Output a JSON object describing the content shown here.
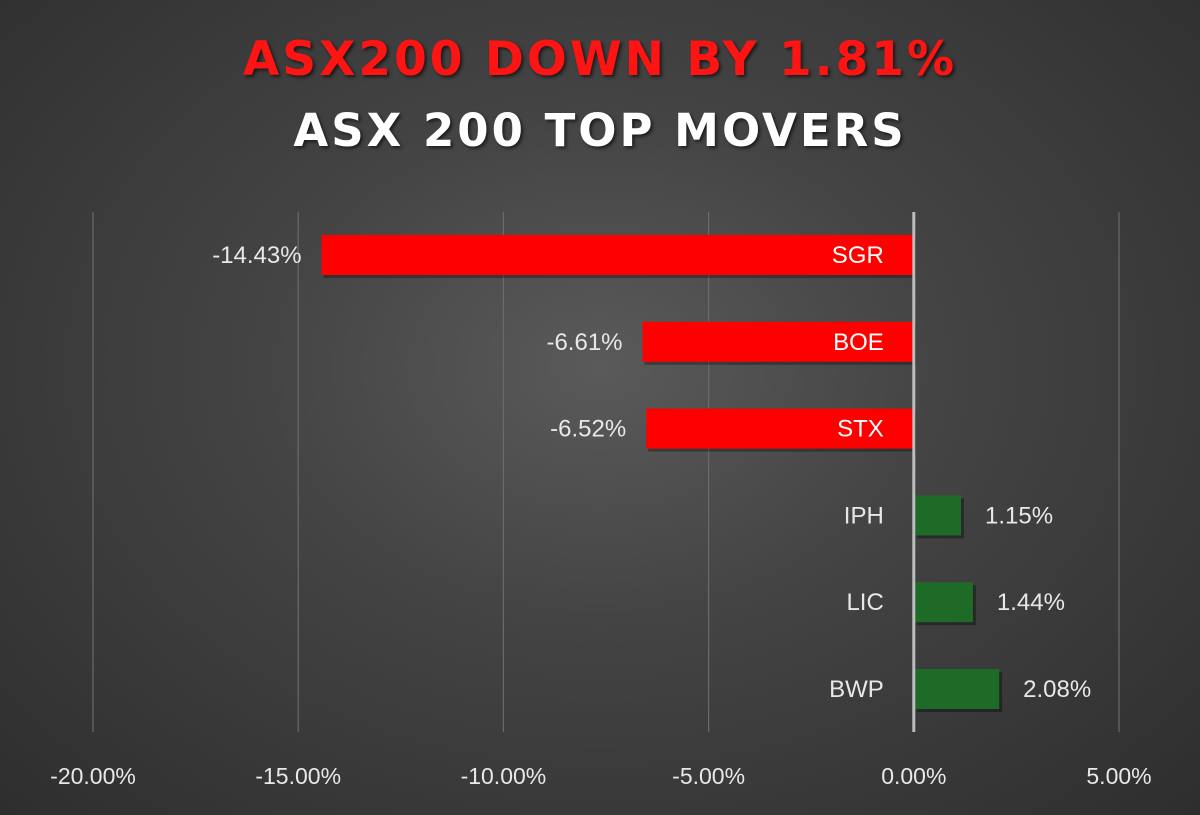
{
  "header": {
    "headline": "ASX200 DOWN BY 1.81%",
    "subheadline": "ASX 200 TOP MOVERS"
  },
  "colors": {
    "negative": "#ff0000",
    "positive": "#1e6b28",
    "gridline": "#6a6a6a",
    "axis": "#bdbdbd",
    "text": "#e8e8e8",
    "headline": "#ff1414"
  },
  "chart_data": {
    "type": "bar",
    "orientation": "horizontal",
    "title": "",
    "xlabel": "",
    "ylabel": "",
    "xlim": [
      -20,
      5
    ],
    "grid": true,
    "legend": "none",
    "categories": [
      "SGR",
      "BOE",
      "STX",
      "IPH",
      "LIC",
      "BWP"
    ],
    "values": [
      -14.43,
      -6.61,
      -6.52,
      1.15,
      1.44,
      2.08
    ],
    "value_labels": [
      "-14.43%",
      "-6.61%",
      "-6.52%",
      "1.15%",
      "1.44%",
      "2.08%"
    ],
    "tick_values": [
      -20,
      -15,
      -10,
      -5,
      0,
      5
    ],
    "tick_labels": [
      "-20.00%",
      "-15.00%",
      "-10.00%",
      "-5.00%",
      "0.00%",
      "5.00%"
    ]
  }
}
